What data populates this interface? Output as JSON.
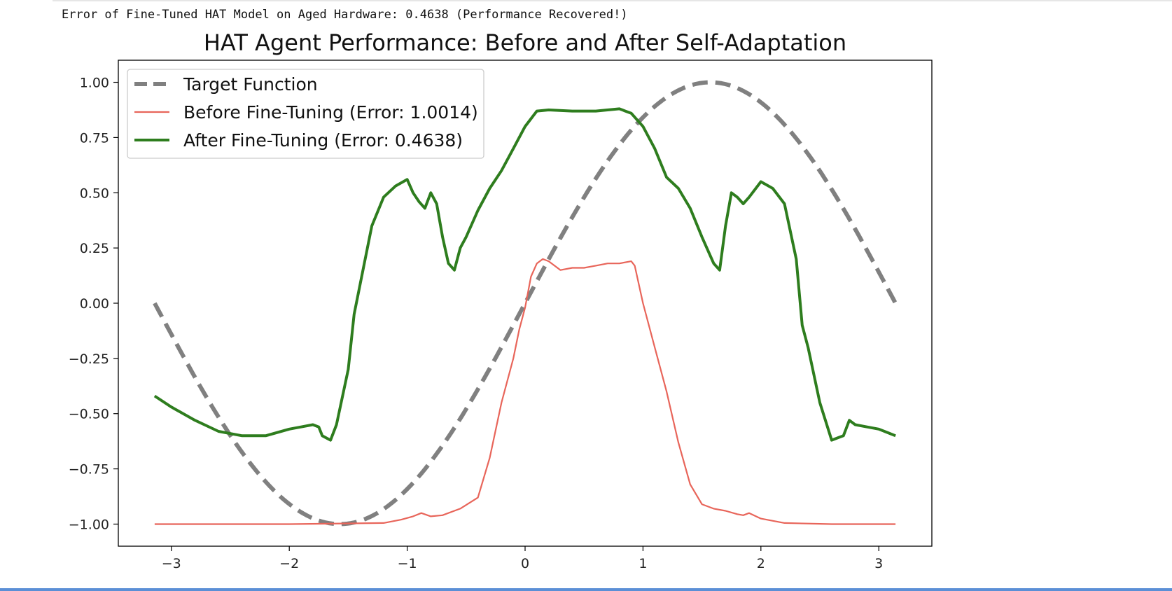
{
  "output": {
    "text": "Error of Fine-Tuned HAT Model on Aged Hardware: 0.4638 (Performance Recovered!)"
  },
  "chart_data": {
    "type": "line",
    "title": "HAT Agent Performance: Before and After Self-Adaptation",
    "xlabel": "",
    "ylabel": "",
    "xlim": [
      -3.45,
      3.45
    ],
    "ylim": [
      -1.1,
      1.1
    ],
    "x_ticks": [
      -3,
      -2,
      -1,
      0,
      1,
      2,
      3
    ],
    "x_tick_labels": [
      "−3",
      "−2",
      "−1",
      "0",
      "1",
      "2",
      "3"
    ],
    "y_ticks": [
      1.0,
      0.75,
      0.5,
      0.25,
      0.0,
      -0.25,
      -0.5,
      -0.75,
      -1.0
    ],
    "y_tick_labels": [
      "1.00",
      "0.75",
      "0.50",
      "0.25",
      "0.00",
      "−0.25",
      "−0.50",
      "−0.75",
      "−1.00"
    ],
    "grid": false,
    "legend_position": "top-left",
    "series": [
      {
        "name": "Target Function",
        "color": "#808080",
        "style": "dashed",
        "function": "sin",
        "x": [
          -3.1416,
          3.1416
        ]
      },
      {
        "name": "Before Fine-Tuning (Error: 1.0014)",
        "color": "#e8655a",
        "style": "solid",
        "x": [
          -3.1416,
          -2.0,
          -1.2,
          -1.05,
          -0.95,
          -0.88,
          -0.8,
          -0.7,
          -0.55,
          -0.4,
          -0.3,
          -0.2,
          -0.1,
          -0.05,
          0.0,
          0.05,
          0.1,
          0.15,
          0.2,
          0.3,
          0.4,
          0.5,
          0.6,
          0.7,
          0.8,
          0.9,
          0.93,
          1.0,
          1.1,
          1.2,
          1.3,
          1.4,
          1.5,
          1.6,
          1.7,
          1.8,
          1.85,
          1.9,
          2.0,
          2.2,
          2.6,
          3.1416
        ],
        "y": [
          -1.0,
          -1.0,
          -0.995,
          -0.98,
          -0.965,
          -0.95,
          -0.965,
          -0.96,
          -0.93,
          -0.88,
          -0.7,
          -0.45,
          -0.25,
          -0.12,
          -0.02,
          0.12,
          0.18,
          0.2,
          0.19,
          0.15,
          0.16,
          0.16,
          0.17,
          0.18,
          0.18,
          0.19,
          0.17,
          0.0,
          -0.2,
          -0.4,
          -0.63,
          -0.82,
          -0.91,
          -0.93,
          -0.94,
          -0.955,
          -0.96,
          -0.95,
          -0.975,
          -0.995,
          -1.0,
          -1.0
        ]
      },
      {
        "name": "After Fine-Tuning (Error: 0.4638)",
        "color": "#2e7d1e",
        "style": "solid",
        "x": [
          -3.1416,
          -3.0,
          -2.8,
          -2.6,
          -2.4,
          -2.2,
          -2.0,
          -1.9,
          -1.8,
          -1.75,
          -1.72,
          -1.65,
          -1.6,
          -1.5,
          -1.45,
          -1.3,
          -1.2,
          -1.1,
          -1.0,
          -0.95,
          -0.9,
          -0.85,
          -0.8,
          -0.75,
          -0.7,
          -0.65,
          -0.6,
          -0.55,
          -0.5,
          -0.4,
          -0.3,
          -0.2,
          -0.1,
          0.0,
          0.1,
          0.2,
          0.4,
          0.6,
          0.8,
          0.85,
          0.9,
          0.95,
          1.0,
          1.1,
          1.2,
          1.3,
          1.4,
          1.5,
          1.6,
          1.65,
          1.7,
          1.75,
          1.8,
          1.85,
          1.9,
          2.0,
          2.1,
          2.2,
          2.3,
          2.35,
          2.4,
          2.5,
          2.6,
          2.65,
          2.7,
          2.75,
          2.8,
          2.9,
          3.0,
          3.1416
        ],
        "y": [
          -0.42,
          -0.47,
          -0.53,
          -0.58,
          -0.6,
          -0.6,
          -0.57,
          -0.56,
          -0.55,
          -0.56,
          -0.6,
          -0.62,
          -0.55,
          -0.3,
          -0.05,
          0.35,
          0.48,
          0.53,
          0.56,
          0.5,
          0.46,
          0.43,
          0.5,
          0.45,
          0.3,
          0.18,
          0.15,
          0.25,
          0.3,
          0.42,
          0.52,
          0.6,
          0.7,
          0.8,
          0.87,
          0.875,
          0.87,
          0.87,
          0.88,
          0.87,
          0.86,
          0.83,
          0.8,
          0.7,
          0.57,
          0.52,
          0.43,
          0.3,
          0.18,
          0.15,
          0.35,
          0.5,
          0.48,
          0.45,
          0.48,
          0.55,
          0.52,
          0.45,
          0.2,
          -0.1,
          -0.2,
          -0.45,
          -0.62,
          -0.61,
          -0.6,
          -0.53,
          -0.55,
          -0.56,
          -0.57,
          -0.6
        ]
      }
    ]
  }
}
